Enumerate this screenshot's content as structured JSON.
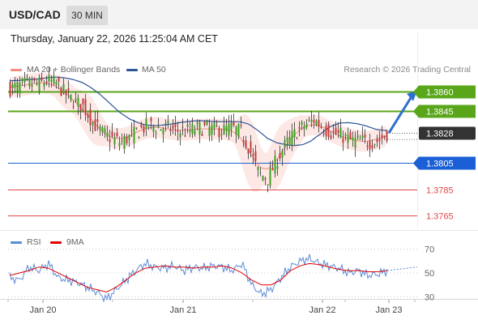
{
  "header": {
    "pair": "USD/CAD",
    "timeframe": "30 MIN",
    "datetime": "Thursday, January 22, 2026 11:25:04 AM CET"
  },
  "legend": {
    "main": [
      {
        "label": "MA 20 + Bollinger Bands",
        "color": "#f28b82"
      },
      {
        "label": "MA 50",
        "color": "#2f5597"
      }
    ],
    "copyright": "Research © 2026 Trading Central",
    "rsi": [
      {
        "label": "RSI",
        "color": "#5b8bd6"
      },
      {
        "label": "9MA",
        "color": "#e00000"
      }
    ]
  },
  "chart_data": [
    {
      "type": "candlestick",
      "ylim": [
        1.3755,
        1.3905
      ],
      "levels": [
        {
          "label": "1.3860",
          "value": 1.386,
          "color": "#5aa61b",
          "kind": "resistance"
        },
        {
          "label": "1.3845",
          "value": 1.3845,
          "color": "#5aa61b",
          "kind": "resistance"
        },
        {
          "label": "1.3828",
          "value": 1.3828,
          "color": "#333333",
          "kind": "current"
        },
        {
          "label": "1.3805",
          "value": 1.3805,
          "color": "#1a5fd6",
          "kind": "pivot"
        },
        {
          "label": "1.3785",
          "value": 1.3785,
          "color": "#e04848",
          "kind": "support"
        },
        {
          "label": "1.3765",
          "value": 1.3765,
          "color": "#e04848",
          "kind": "support"
        }
      ],
      "close_path": [
        1.3862,
        1.3864,
        1.3866,
        1.3865,
        1.3868,
        1.3866,
        1.3858,
        1.3852,
        1.3848,
        1.3836,
        1.3828,
        1.3824,
        1.3821,
        1.3825,
        1.383,
        1.3834,
        1.3832,
        1.3832,
        1.383,
        1.3829,
        1.3831,
        1.3832,
        1.3831,
        1.383,
        1.3832,
        1.3829,
        1.3816,
        1.3797,
        1.3793,
        1.3808,
        1.382,
        1.3828,
        1.3834,
        1.3838,
        1.3832,
        1.3828,
        1.3826,
        1.3822,
        1.3822,
        1.3821,
        1.3822,
        1.3828
      ],
      "projection": {
        "from": 1.3828,
        "to": 1.3858
      },
      "x_ticks": [
        "Jan 20",
        "Jan 21",
        "Jan 22",
        "Jan 23"
      ]
    },
    {
      "type": "line",
      "name": "RSI",
      "ylim": [
        20,
        80
      ],
      "y_ticks": [
        70,
        50,
        30
      ],
      "rsi_path": [
        46,
        44,
        55,
        52,
        58,
        46,
        44,
        42,
        38,
        34,
        28,
        36,
        44,
        52,
        58,
        55,
        54,
        56,
        52,
        55,
        54,
        56,
        55,
        52,
        58,
        40,
        32,
        36,
        46,
        55,
        60,
        62,
        58,
        56,
        54,
        50,
        52,
        48,
        49,
        52
      ],
      "ma_path": [
        48,
        50,
        52,
        55,
        54,
        50,
        46,
        42,
        38,
        36,
        34,
        38,
        44,
        50,
        54,
        55,
        56,
        55,
        55,
        54,
        55,
        55,
        56,
        54,
        50,
        44,
        40,
        40,
        44,
        52,
        56,
        58,
        57,
        55,
        53,
        52,
        52,
        51,
        51,
        52
      ],
      "projection": {
        "from": 52,
        "to": 55
      },
      "x_ticks": [
        "Jan 20",
        "Jan 21",
        "Jan 22",
        "Jan 23"
      ]
    }
  ]
}
